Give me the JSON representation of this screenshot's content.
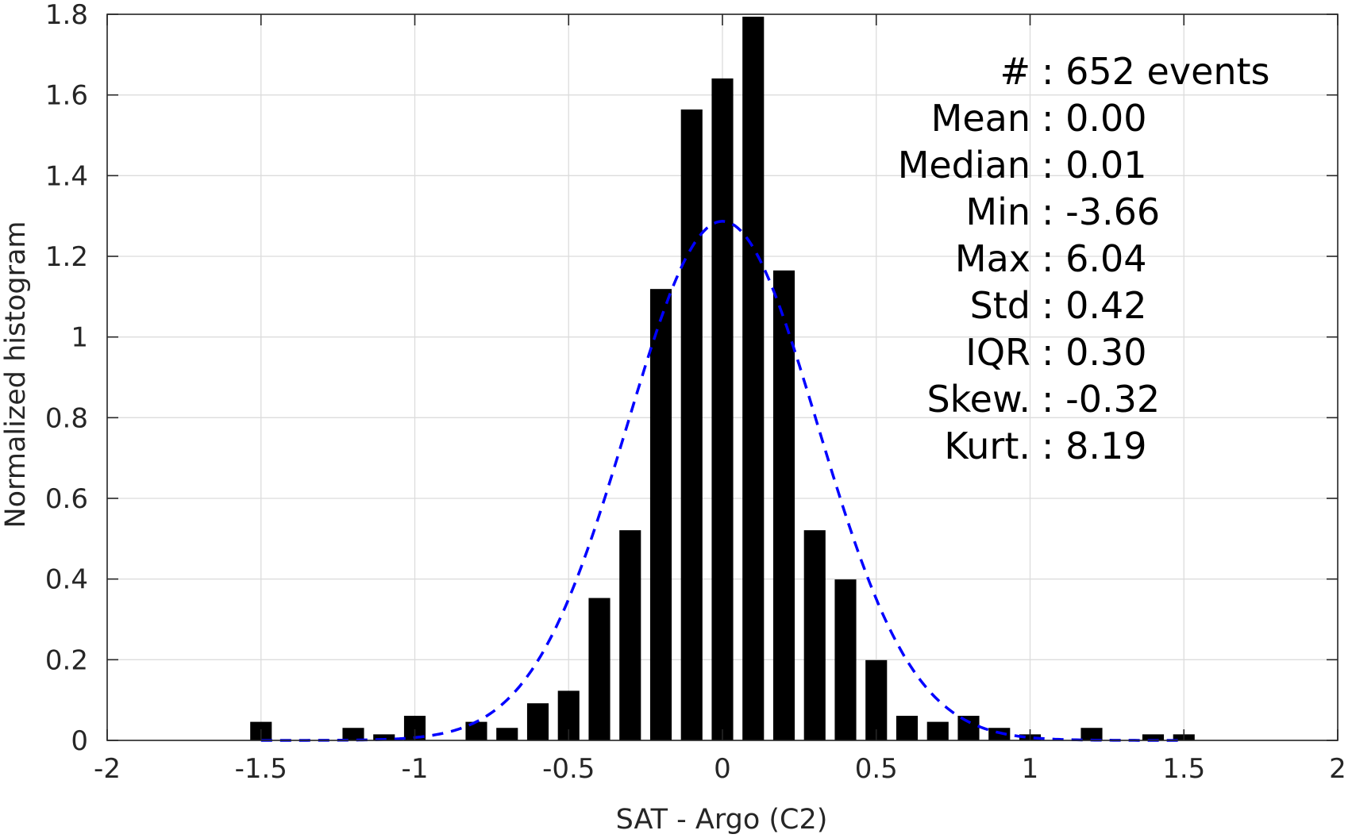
{
  "chart_data": {
    "type": "bar",
    "xlabel": "SAT - Argo (C2)",
    "ylabel": "Normalized histogram",
    "xlim": [
      -2,
      2
    ],
    "ylim": [
      0,
      1.8
    ],
    "grid": true,
    "x_ticks": [
      "-2",
      "-1.5",
      "-1",
      "-0.5",
      "0",
      "0.5",
      "1",
      "1.5",
      "2"
    ],
    "y_ticks": [
      "0",
      "0.2",
      "0.4",
      "0.6",
      "0.8",
      "1",
      "1.2",
      "1.4",
      "1.6",
      "1.8"
    ],
    "x_tick_values": [
      -2,
      -1.5,
      -1,
      -0.5,
      0,
      0.5,
      1,
      1.5,
      2
    ],
    "y_tick_values": [
      0,
      0.2,
      0.4,
      0.6,
      0.8,
      1,
      1.2,
      1.4,
      1.6,
      1.8
    ],
    "bar_width": 0.07,
    "bars": {
      "x": [
        -1.5,
        -1.2,
        -1.1,
        -1.0,
        -0.8,
        -0.7,
        -0.6,
        -0.5,
        -0.4,
        -0.3,
        -0.2,
        -0.1,
        0.0,
        0.1,
        0.2,
        0.3,
        0.4,
        0.5,
        0.6,
        0.7,
        0.8,
        0.9,
        1.0,
        1.2,
        1.4,
        1.5
      ],
      "values": [
        0.046,
        0.031,
        0.015,
        0.061,
        0.046,
        0.031,
        0.092,
        0.123,
        0.353,
        0.521,
        1.119,
        1.564,
        1.641,
        1.794,
        1.165,
        0.521,
        0.399,
        0.199,
        0.061,
        0.046,
        0.061,
        0.031,
        0.015,
        0.031,
        0.015,
        0.015
      ],
      "color": "#000000"
    },
    "fit": {
      "style": "dashed",
      "color": "#0000ff",
      "mean": 0.0,
      "std": 0.31,
      "x_range": [
        -1.5,
        1.5
      ]
    },
    "stats": [
      {
        "label": "#  ",
        "value": "652 events"
      },
      {
        "label": "Mean ",
        "value": "0.00"
      },
      {
        "label": "Median ",
        "value": "0.01"
      },
      {
        "label": "Min ",
        "value": "-3.66"
      },
      {
        "label": "Max ",
        "value": "6.04"
      },
      {
        "label": "Std ",
        "value": "0.42"
      },
      {
        "label": "IQR ",
        "value": "0.30"
      },
      {
        "label": "Skew. ",
        "value": "-0.32"
      },
      {
        "label": "Kurt. ",
        "value": "8.19"
      }
    ]
  }
}
